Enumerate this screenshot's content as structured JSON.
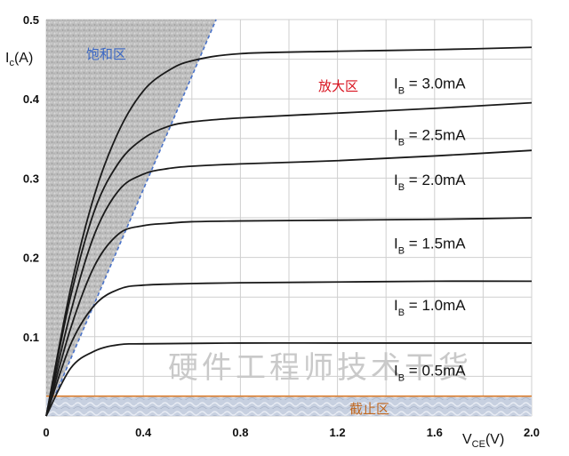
{
  "colors": {
    "saturation_fill": "#bdbdbd",
    "saturation_edge": "#4a73c9",
    "saturation_label": "#3a67c4",
    "active_label": "#d8121e",
    "cutoff_line": "#d97b2a",
    "cutoff_fill": "#c7d0e0",
    "cutoff_label": "#c0671f",
    "curve": "#1a1a1a",
    "grid": "#cfcfcf"
  },
  "watermark": "硬件工程师技术干货",
  "chart_data": {
    "type": "line",
    "x_axis": {
      "label": "V",
      "label_sub": "CE",
      "label_suffix": "(V)",
      "range": [
        0,
        2.0
      ],
      "ticks": [
        "0",
        "0.4",
        "0.8",
        "1.2",
        "1.6",
        "2.0"
      ],
      "tick_values": [
        0,
        0.4,
        0.8,
        1.2,
        1.6,
        2.0
      ]
    },
    "y_axis": {
      "label": "I",
      "label_sub": "c",
      "label_suffix": "(A)",
      "range": [
        0,
        0.5
      ],
      "ticks": [
        "0.1",
        "0.2",
        "0.3",
        "0.4",
        "0.5"
      ],
      "tick_values": [
        0.1,
        0.2,
        0.3,
        0.4,
        0.5
      ]
    },
    "grid": true,
    "regions": {
      "saturation": {
        "label": "饱和区",
        "boundary_top_x": 0.7
      },
      "active": {
        "label": "放大区"
      },
      "cutoff": {
        "label": "截止区",
        "ic_level": 0.025
      }
    },
    "series": [
      {
        "name_prefix": "I",
        "name_sub": "B",
        "name_suffix": " = 3.0mA",
        "sat_ic": 0.45,
        "end_ic": 0.465,
        "points": [
          [
            0,
            0
          ],
          [
            0.1,
            0.16
          ],
          [
            0.2,
            0.28
          ],
          [
            0.3,
            0.36
          ],
          [
            0.4,
            0.41
          ],
          [
            0.5,
            0.435
          ],
          [
            0.6,
            0.448
          ],
          [
            0.8,
            0.457
          ],
          [
            1.2,
            0.46
          ],
          [
            1.6,
            0.462
          ],
          [
            2.0,
            0.465
          ]
        ]
      },
      {
        "name_prefix": "I",
        "name_sub": "B",
        "name_suffix": " = 2.5mA",
        "sat_ic": 0.37,
        "end_ic": 0.395,
        "points": [
          [
            0,
            0
          ],
          [
            0.1,
            0.15
          ],
          [
            0.2,
            0.26
          ],
          [
            0.3,
            0.32
          ],
          [
            0.4,
            0.35
          ],
          [
            0.5,
            0.365
          ],
          [
            0.6,
            0.371
          ],
          [
            0.8,
            0.376
          ],
          [
            1.2,
            0.382
          ],
          [
            1.6,
            0.388
          ],
          [
            2.0,
            0.395
          ]
        ]
      },
      {
        "name_prefix": "I",
        "name_sub": "B",
        "name_suffix": " = 2.0mA",
        "sat_ic": 0.31,
        "end_ic": 0.335,
        "points": [
          [
            0,
            0
          ],
          [
            0.1,
            0.13
          ],
          [
            0.2,
            0.23
          ],
          [
            0.3,
            0.285
          ],
          [
            0.4,
            0.305
          ],
          [
            0.5,
            0.312
          ],
          [
            0.6,
            0.315
          ],
          [
            0.8,
            0.318
          ],
          [
            1.2,
            0.322
          ],
          [
            1.6,
            0.328
          ],
          [
            2.0,
            0.335
          ]
        ]
      },
      {
        "name_prefix": "I",
        "name_sub": "B",
        "name_suffix": " = 1.5mA",
        "sat_ic": 0.24,
        "end_ic": 0.25,
        "points": [
          [
            0,
            0
          ],
          [
            0.1,
            0.11
          ],
          [
            0.2,
            0.19
          ],
          [
            0.3,
            0.23
          ],
          [
            0.4,
            0.24
          ],
          [
            0.5,
            0.243
          ],
          [
            0.6,
            0.245
          ],
          [
            0.8,
            0.246
          ],
          [
            1.2,
            0.247
          ],
          [
            1.6,
            0.248
          ],
          [
            2.0,
            0.25
          ]
        ]
      },
      {
        "name_prefix": "I",
        "name_sub": "B",
        "name_suffix": " = 1.0mA",
        "sat_ic": 0.165,
        "end_ic": 0.17,
        "points": [
          [
            0,
            0
          ],
          [
            0.1,
            0.09
          ],
          [
            0.2,
            0.14
          ],
          [
            0.3,
            0.16
          ],
          [
            0.4,
            0.165
          ],
          [
            0.6,
            0.167
          ],
          [
            0.8,
            0.168
          ],
          [
            1.2,
            0.169
          ],
          [
            1.6,
            0.17
          ],
          [
            2.0,
            0.17
          ]
        ]
      },
      {
        "name_prefix": "I",
        "name_sub": "B",
        "name_suffix": " = 0.5mA",
        "sat_ic": 0.09,
        "end_ic": 0.092,
        "points": [
          [
            0,
            0
          ],
          [
            0.1,
            0.06
          ],
          [
            0.2,
            0.082
          ],
          [
            0.3,
            0.09
          ],
          [
            0.4,
            0.091
          ],
          [
            0.8,
            0.092
          ],
          [
            1.2,
            0.092
          ],
          [
            1.6,
            0.092
          ],
          [
            2.0,
            0.092
          ]
        ]
      }
    ],
    "series_label_ic": [
      0.42,
      0.355,
      0.298,
      0.218,
      0.14,
      0.058
    ]
  }
}
